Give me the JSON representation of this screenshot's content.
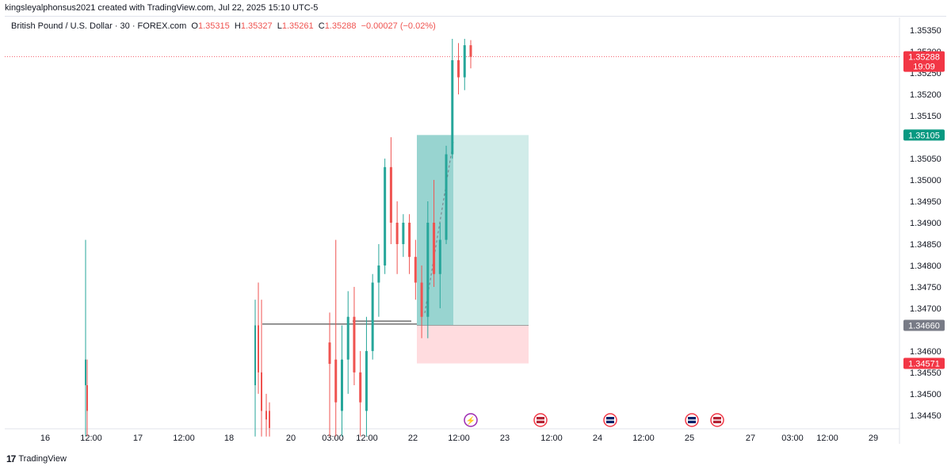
{
  "header": {
    "author_line": "kingsleyalphonsus2021 created with TradingView.com, Jul 22, 2025 15:10 UTC-5"
  },
  "legend": {
    "symbol": "British Pound / U.S. Dollar · 30 · FOREX.com",
    "open_label": "O",
    "open": "1.35315",
    "high_label": "H",
    "high": "1.35327",
    "low_label": "L",
    "low": "1.35261",
    "close_label": "C",
    "close": "1.35288",
    "change": "−0.00027 (−0.02%)"
  },
  "footer": {
    "brand": "TradingView",
    "logo_glyph": "17"
  },
  "colors": {
    "up": "#26a69a",
    "down": "#ef5350",
    "profit_zone": "#b2dfdb",
    "loss_zone": "#ffcdd2",
    "price_label": "#f23645",
    "target_label": "#089981",
    "entry_label": "#787b86"
  },
  "chart_data": {
    "type": "candlestick",
    "symbol": "GBPUSD",
    "timeframe": "30",
    "x_tick_labels": [
      "16",
      "12:00",
      "17",
      "12:00",
      "18",
      "20",
      "03:00",
      "12:00",
      "22",
      "12:00",
      "23",
      "12:00",
      "24",
      "12:00",
      "25",
      "27",
      "03:00",
      "12:00",
      "29"
    ],
    "y_tick_labels": [
      "1.35350",
      "1.35300",
      "1.35250",
      "1.35200",
      "1.35150",
      "1.35050",
      "1.35000",
      "1.34950",
      "1.34900",
      "1.34850",
      "1.34800",
      "1.34750",
      "1.34700",
      "1.34600",
      "1.34550",
      "1.34500",
      "1.34450"
    ],
    "ylim": [
      1.3442,
      1.3538
    ],
    "current_price": {
      "value": "1.35288",
      "countdown": "19:09"
    },
    "long_position": {
      "entry": "1.34660",
      "target": "1.35105",
      "stop": "1.34571"
    },
    "support_line": 1.34663,
    "event_icons": [
      "lightning-icon",
      "us-flag-icon",
      "gb-flag-icon",
      "gb-flag-icon",
      "us-flag-icon"
    ],
    "candles_visible": [
      {
        "o": 1.3462,
        "h": 1.3469,
        "l": 1.344,
        "c": 1.3457
      },
      {
        "o": 1.3458,
        "h": 1.3486,
        "l": 1.344,
        "c": 1.3448
      },
      {
        "o": 1.3446,
        "h": 1.3466,
        "l": 1.344,
        "c": 1.3458
      },
      {
        "o": 1.3458,
        "h": 1.3474,
        "l": 1.345,
        "c": 1.3468
      },
      {
        "o": 1.3468,
        "h": 1.3475,
        "l": 1.3452,
        "c": 1.3455
      },
      {
        "o": 1.3455,
        "h": 1.346,
        "l": 1.344,
        "c": 1.3448
      },
      {
        "o": 1.3446,
        "h": 1.3468,
        "l": 1.344,
        "c": 1.346
      },
      {
        "o": 1.346,
        "h": 1.3478,
        "l": 1.3458,
        "c": 1.3476
      },
      {
        "o": 1.3476,
        "h": 1.3485,
        "l": 1.3468,
        "c": 1.348
      },
      {
        "o": 1.348,
        "h": 1.3505,
        "l": 1.3478,
        "c": 1.3503
      },
      {
        "o": 1.3503,
        "h": 1.351,
        "l": 1.3485,
        "c": 1.349
      },
      {
        "o": 1.349,
        "h": 1.3495,
        "l": 1.3478,
        "c": 1.3485
      },
      {
        "o": 1.3485,
        "h": 1.3492,
        "l": 1.3482,
        "c": 1.349
      },
      {
        "o": 1.349,
        "h": 1.3492,
        "l": 1.3478,
        "c": 1.3482
      },
      {
        "o": 1.3482,
        "h": 1.3486,
        "l": 1.3472,
        "c": 1.3476
      },
      {
        "o": 1.3476,
        "h": 1.348,
        "l": 1.3463,
        "c": 1.3468
      },
      {
        "o": 1.3468,
        "h": 1.3495,
        "l": 1.3463,
        "c": 1.349
      },
      {
        "o": 1.349,
        "h": 1.35,
        "l": 1.3475,
        "c": 1.3478
      },
      {
        "o": 1.3478,
        "h": 1.349,
        "l": 1.347,
        "c": 1.3486
      },
      {
        "o": 1.3486,
        "h": 1.3508,
        "l": 1.3485,
        "c": 1.3506
      },
      {
        "o": 1.3506,
        "h": 1.3533,
        "l": 1.3505,
        "c": 1.3528
      },
      {
        "o": 1.3528,
        "h": 1.3532,
        "l": 1.352,
        "c": 1.3524
      },
      {
        "o": 1.3524,
        "h": 1.3533,
        "l": 1.3521,
        "c": 1.35315
      },
      {
        "o": 1.35315,
        "h": 1.35327,
        "l": 1.35261,
        "c": 1.35288
      }
    ]
  }
}
